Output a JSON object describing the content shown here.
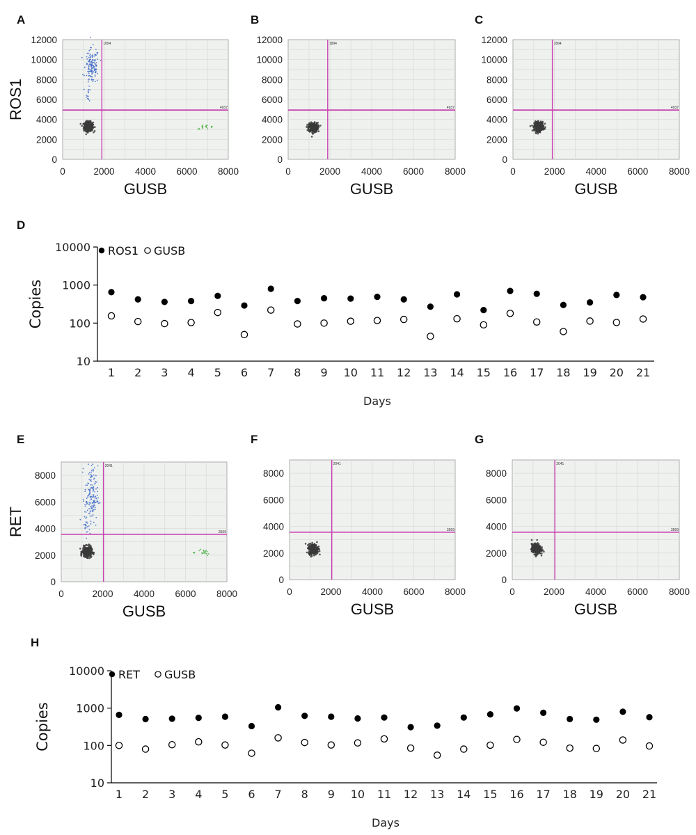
{
  "colors": {
    "plot_bg": "#eff1ef",
    "grid": "#d7dad7",
    "threshold": "#c93fb0",
    "negative_cluster": "#3a3a3a",
    "target_cluster": "#3b66c8",
    "gusb_cluster": "#47b03c",
    "dot_filled": "#000000",
    "dot_open": "#ffffff"
  },
  "panels": {
    "A": "A",
    "B": "B",
    "C": "C",
    "D": "D",
    "E": "E",
    "F": "F",
    "G": "G",
    "H": "H"
  },
  "chart_data": [
    {
      "type": "scatter",
      "panel": "A",
      "xlabel": "GUSB",
      "ylabel": "ROS1",
      "xlim": [
        0,
        8000
      ],
      "ylim": [
        0,
        12000
      ],
      "xticks": [
        "0",
        "2000",
        "4000",
        "6000",
        "8000"
      ],
      "yticks": [
        "0",
        "2000",
        "4000",
        "6000",
        "8000",
        "10000",
        "12000"
      ],
      "threshold_x": 1894,
      "threshold_y": 4937,
      "threshold_x_label": "1894",
      "threshold_y_label": "4937",
      "clusters": [
        {
          "kind": "negative",
          "cx": 1250,
          "cy": 3300,
          "sx": 110,
          "sy": 230,
          "n": 340
        },
        {
          "kind": "target",
          "cx": 1420,
          "cy": 9300,
          "sx": 170,
          "sy": 900,
          "n": 140
        },
        {
          "kind": "target",
          "cx": 1250,
          "cy": 6500,
          "sx": 50,
          "sy": 350,
          "n": 14
        },
        {
          "kind": "gusb",
          "cx": 6900,
          "cy": 3250,
          "sx": 220,
          "sy": 110,
          "n": 18
        }
      ]
    },
    {
      "type": "scatter",
      "panel": "B",
      "xlabel": "GUSB",
      "ylabel": "",
      "xlim": [
        0,
        8000
      ],
      "ylim": [
        0,
        12000
      ],
      "xticks": [
        "0",
        "2000",
        "4000",
        "6000",
        "8000"
      ],
      "yticks": [
        "0",
        "2000",
        "4000",
        "6000",
        "8000",
        "10000",
        "12000"
      ],
      "threshold_x": 1894,
      "threshold_y": 4937,
      "threshold_x_label": "1894",
      "threshold_y_label": "4937",
      "clusters": [
        {
          "kind": "negative",
          "cx": 1200,
          "cy": 3200,
          "sx": 110,
          "sy": 230,
          "n": 340
        }
      ]
    },
    {
      "type": "scatter",
      "panel": "C",
      "xlabel": "GUSB",
      "ylabel": "",
      "xlim": [
        0,
        8000
      ],
      "ylim": [
        0,
        12000
      ],
      "xticks": [
        "0",
        "2000",
        "4000",
        "6000",
        "8000"
      ],
      "yticks": [
        "0",
        "2000",
        "4000",
        "6000",
        "8000",
        "10000",
        "12000"
      ],
      "threshold_x": 1894,
      "threshold_y": 4937,
      "threshold_x_label": "1894",
      "threshold_y_label": "4937",
      "clusters": [
        {
          "kind": "negative",
          "cx": 1250,
          "cy": 3300,
          "sx": 110,
          "sy": 230,
          "n": 340
        }
      ]
    },
    {
      "type": "scatter",
      "panel": "D",
      "xlabel": "Days",
      "ylabel": "Copies",
      "yscale": "log",
      "ylim": [
        10,
        10000
      ],
      "yticks": [
        "10",
        "100",
        "1000",
        "10000"
      ],
      "x": [
        1,
        2,
        3,
        4,
        5,
        6,
        7,
        8,
        9,
        10,
        11,
        12,
        13,
        14,
        15,
        16,
        17,
        18,
        19,
        20,
        21
      ],
      "series": [
        {
          "name": "ROS1",
          "marker": "filled",
          "values": [
            650,
            420,
            360,
            380,
            520,
            290,
            800,
            380,
            450,
            440,
            490,
            420,
            270,
            570,
            220,
            700,
            590,
            300,
            350,
            550,
            480
          ]
        },
        {
          "name": "GUSB",
          "marker": "open",
          "values": [
            155,
            110,
            97,
            103,
            190,
            50,
            220,
            95,
            100,
            112,
            117,
            125,
            45,
            130,
            90,
            180,
            107,
            60,
            113,
            104,
            128
          ]
        }
      ]
    },
    {
      "type": "scatter",
      "panel": "E",
      "xlabel": "GUSB",
      "ylabel": "RET",
      "xlim": [
        0,
        8000
      ],
      "ylim": [
        0,
        9000
      ],
      "xticks": [
        "0",
        "2000",
        "4000",
        "6000",
        "8000"
      ],
      "yticks": [
        "0",
        "2000",
        "4000",
        "6000",
        "8000"
      ],
      "threshold_x": 2041,
      "threshold_y": 3569,
      "threshold_x_label": "2041",
      "threshold_y_label": "3569",
      "clusters": [
        {
          "kind": "negative",
          "cx": 1250,
          "cy": 2250,
          "sx": 110,
          "sy": 190,
          "n": 340
        },
        {
          "kind": "target",
          "cx": 1450,
          "cy": 6400,
          "sx": 160,
          "sy": 1150,
          "n": 150
        },
        {
          "kind": "target",
          "cx": 1250,
          "cy": 4100,
          "sx": 60,
          "sy": 350,
          "n": 16
        },
        {
          "kind": "gusb",
          "cx": 6700,
          "cy": 2250,
          "sx": 320,
          "sy": 150,
          "n": 20
        }
      ]
    },
    {
      "type": "scatter",
      "panel": "F",
      "xlabel": "GUSB",
      "ylabel": "",
      "xlim": [
        0,
        8000
      ],
      "ylim": [
        0,
        9000
      ],
      "xticks": [
        "0",
        "2000",
        "4000",
        "6000",
        "8000"
      ],
      "yticks": [
        "0",
        "2000",
        "4000",
        "6000",
        "8000"
      ],
      "threshold_x": 2041,
      "threshold_y": 3569,
      "threshold_x_label": "2041",
      "threshold_y_label": "3569",
      "clusters": [
        {
          "kind": "negative",
          "cx": 1150,
          "cy": 2300,
          "sx": 110,
          "sy": 190,
          "n": 340
        }
      ]
    },
    {
      "type": "scatter",
      "panel": "G",
      "xlabel": "GUSB",
      "ylabel": "",
      "xlim": [
        0,
        8000
      ],
      "ylim": [
        0,
        9000
      ],
      "xticks": [
        "0",
        "2000",
        "4000",
        "6000",
        "8000"
      ],
      "yticks": [
        "0",
        "2000",
        "4000",
        "6000",
        "8000"
      ],
      "threshold_x": 2041,
      "threshold_y": 3569,
      "threshold_x_label": "2041",
      "threshold_y_label": "3569",
      "clusters": [
        {
          "kind": "negative",
          "cx": 1150,
          "cy": 2300,
          "sx": 110,
          "sy": 190,
          "n": 340
        }
      ]
    },
    {
      "type": "scatter",
      "panel": "H",
      "xlabel": "Days",
      "ylabel": "Copies",
      "yscale": "log",
      "ylim": [
        10,
        10000
      ],
      "yticks": [
        "10",
        "100",
        "1000",
        "10000"
      ],
      "x": [
        1,
        2,
        3,
        4,
        5,
        6,
        7,
        8,
        9,
        10,
        11,
        12,
        13,
        14,
        15,
        16,
        17,
        18,
        19,
        20,
        21
      ],
      "series": [
        {
          "name": "RET",
          "marker": "filled",
          "values": [
            660,
            510,
            520,
            550,
            590,
            330,
            1050,
            620,
            590,
            530,
            560,
            310,
            340,
            560,
            680,
            980,
            750,
            510,
            490,
            800,
            570
          ]
        },
        {
          "name": "GUSB",
          "marker": "open",
          "values": [
            100,
            80,
            105,
            125,
            103,
            62,
            160,
            120,
            103,
            117,
            150,
            85,
            55,
            80,
            102,
            145,
            122,
            85,
            83,
            140,
            97
          ]
        }
      ]
    }
  ]
}
